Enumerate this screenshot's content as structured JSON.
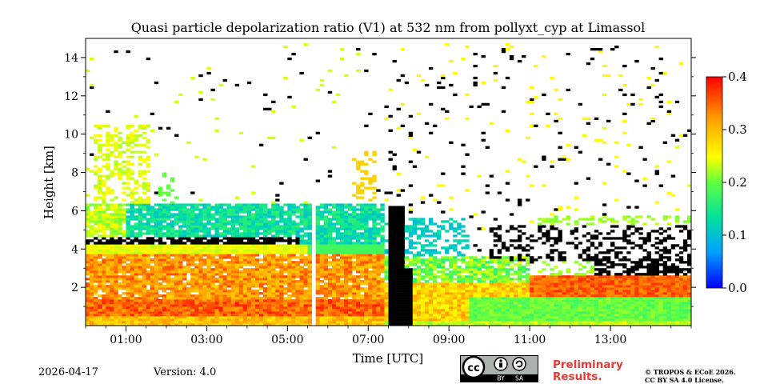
{
  "chart_data": {
    "type": "heatmap",
    "title": "Quasi particle depolarization ratio (V1) at 532 nm from pollyxt_cyp at Limassol",
    "xlabel": "Time [UTC]",
    "ylabel": "Height [km]",
    "x_tick_labels": [
      "01:00",
      "03:00",
      "05:00",
      "07:00",
      "09:00",
      "11:00",
      "13:00"
    ],
    "x_tick_hours": [
      1,
      3,
      5,
      7,
      9,
      11,
      13
    ],
    "x_range_hours": [
      0,
      15
    ],
    "y_ticks": [
      2,
      4,
      6,
      8,
      10,
      12,
      14
    ],
    "y_tick_labels": [
      "2",
      "4",
      "6",
      "8",
      "10",
      "12",
      "14"
    ],
    "y_range_km": [
      0,
      15
    ],
    "colorbar": {
      "min": 0.0,
      "max": 0.4,
      "ticks": [
        0.0,
        0.1,
        0.2,
        0.3,
        0.4
      ],
      "tick_labels": [
        "0.0",
        "0.1",
        "0.2",
        "0.3",
        "0.4"
      ],
      "colormap": [
        "#0000ff",
        "#00a0ff",
        "#00e0a0",
        "#60ff40",
        "#ffff00",
        "#ffa000",
        "#ff0000"
      ]
    },
    "features": [
      {
        "name": "aerosol-layer-low",
        "time_hours": [
          0,
          15
        ],
        "height_km": [
          0.1,
          1.4
        ],
        "value": 0.32
      },
      {
        "name": "dust-layer",
        "time_hours": [
          0,
          7.4
        ],
        "height_km": [
          1.2,
          3.8
        ],
        "value": 0.33
      },
      {
        "name": "upper-dust-layer",
        "time_hours": [
          0,
          4.8
        ],
        "height_km": [
          4.2,
          6.4
        ],
        "value": 0.13
      },
      {
        "name": "cirrus-morning",
        "time_hours": [
          0.2,
          1.6
        ],
        "height_km": [
          6,
          10.5
        ],
        "value": 0.28
      },
      {
        "name": "low-aerosol-afternoon",
        "time_hours": [
          9.5,
          15
        ],
        "height_km": [
          0.2,
          1.5
        ],
        "value": 0.2
      },
      {
        "name": "data-gap",
        "time_hours": [
          5.55,
          5.7
        ],
        "height_km": [
          0,
          6.2
        ],
        "value": null
      }
    ]
  },
  "footer": {
    "date": "2026-04-17",
    "version": "Version: 4.0",
    "preliminary_line1": "Preliminary",
    "preliminary_line2": "Results.",
    "copyright_line1": "© TROPOS & ECoE 2026.",
    "copyright_line2": "CC BY SA 4.0 License."
  },
  "license_logo": {
    "cc": "cc",
    "by": "BY",
    "sa": "SA"
  }
}
